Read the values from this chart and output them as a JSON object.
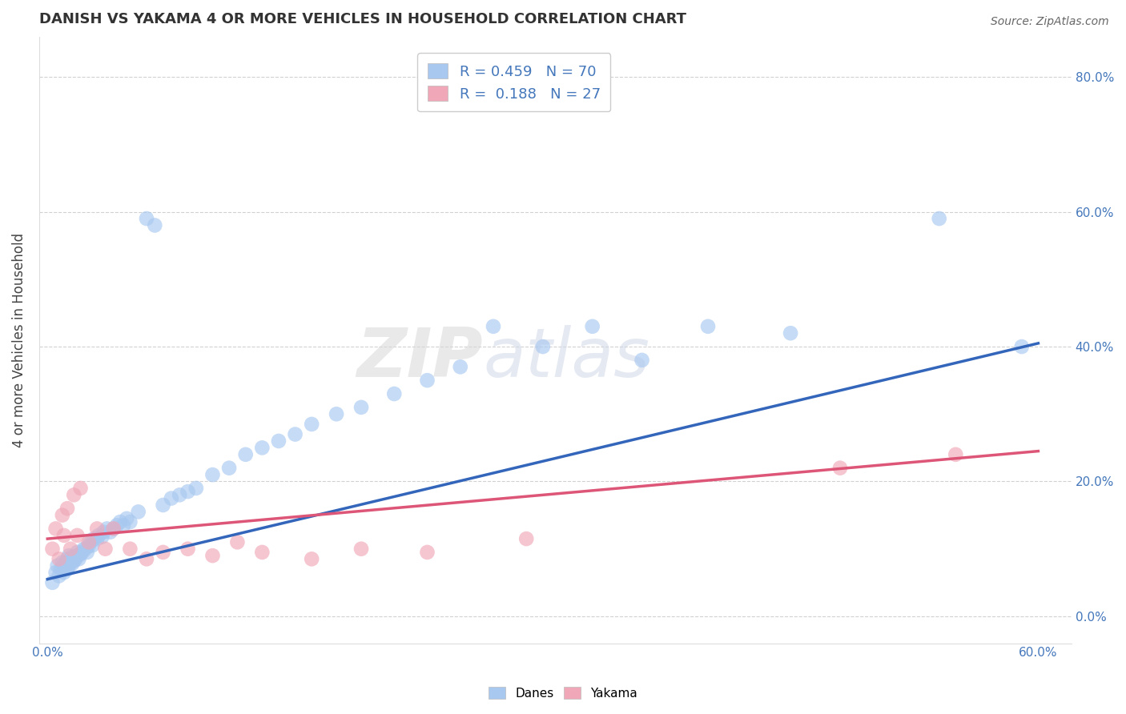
{
  "title": "DANISH VS YAKAMA 4 OR MORE VEHICLES IN HOUSEHOLD CORRELATION CHART",
  "source": "Source: ZipAtlas.com",
  "ylabel": "4 or more Vehicles in Household",
  "xlim": [
    -0.005,
    0.62
  ],
  "ylim": [
    -0.04,
    0.86
  ],
  "danes_R": 0.459,
  "danes_N": 70,
  "yakama_R": 0.188,
  "yakama_N": 27,
  "danes_color": "#a8c8f0",
  "yakama_color": "#f0a8b8",
  "danes_line_color": "#3366bb",
  "yakama_line_color": "#dd5577",
  "watermark": "ZIPatlas",
  "danes_x": [
    0.003,
    0.005,
    0.006,
    0.007,
    0.008,
    0.009,
    0.01,
    0.01,
    0.011,
    0.012,
    0.012,
    0.013,
    0.013,
    0.014,
    0.015,
    0.015,
    0.016,
    0.017,
    0.018,
    0.018,
    0.019,
    0.02,
    0.021,
    0.022,
    0.023,
    0.024,
    0.025,
    0.026,
    0.027,
    0.028,
    0.03,
    0.031,
    0.033,
    0.034,
    0.036,
    0.038,
    0.04,
    0.042,
    0.044,
    0.046,
    0.048,
    0.05,
    0.055,
    0.06,
    0.065,
    0.07,
    0.075,
    0.08,
    0.085,
    0.09,
    0.1,
    0.11,
    0.12,
    0.13,
    0.14,
    0.15,
    0.16,
    0.175,
    0.19,
    0.21,
    0.23,
    0.25,
    0.27,
    0.3,
    0.33,
    0.36,
    0.4,
    0.45,
    0.54,
    0.59
  ],
  "danes_y": [
    0.05,
    0.065,
    0.075,
    0.06,
    0.07,
    0.08,
    0.065,
    0.075,
    0.08,
    0.07,
    0.085,
    0.075,
    0.09,
    0.08,
    0.078,
    0.088,
    0.082,
    0.085,
    0.09,
    0.095,
    0.085,
    0.092,
    0.095,
    0.1,
    0.1,
    0.095,
    0.105,
    0.11,
    0.105,
    0.115,
    0.115,
    0.12,
    0.118,
    0.125,
    0.13,
    0.125,
    0.13,
    0.135,
    0.14,
    0.135,
    0.145,
    0.14,
    0.155,
    0.59,
    0.58,
    0.165,
    0.175,
    0.18,
    0.185,
    0.19,
    0.21,
    0.22,
    0.24,
    0.25,
    0.26,
    0.27,
    0.285,
    0.3,
    0.31,
    0.33,
    0.35,
    0.37,
    0.43,
    0.4,
    0.43,
    0.38,
    0.43,
    0.42,
    0.59,
    0.4
  ],
  "yakama_x": [
    0.003,
    0.005,
    0.007,
    0.009,
    0.01,
    0.012,
    0.014,
    0.016,
    0.018,
    0.02,
    0.025,
    0.03,
    0.035,
    0.04,
    0.05,
    0.06,
    0.07,
    0.085,
    0.1,
    0.115,
    0.13,
    0.16,
    0.19,
    0.23,
    0.29,
    0.48,
    0.55
  ],
  "yakama_y": [
    0.1,
    0.13,
    0.085,
    0.15,
    0.12,
    0.16,
    0.1,
    0.18,
    0.12,
    0.19,
    0.11,
    0.13,
    0.1,
    0.13,
    0.1,
    0.085,
    0.095,
    0.1,
    0.09,
    0.11,
    0.095,
    0.085,
    0.1,
    0.095,
    0.115,
    0.22,
    0.24
  ],
  "danes_line_x": [
    0.0,
    0.6
  ],
  "danes_line_y": [
    0.055,
    0.405
  ],
  "yakama_line_x": [
    0.0,
    0.6
  ],
  "yakama_line_y": [
    0.115,
    0.245
  ],
  "yticks": [
    0.0,
    0.2,
    0.4,
    0.6,
    0.8
  ],
  "ytick_labels": [
    "0.0%",
    "20.0%",
    "40.0%",
    "60.0%",
    "80.0%"
  ],
  "xticks": [
    0.0,
    0.1,
    0.2,
    0.3,
    0.4,
    0.5,
    0.6
  ],
  "xtick_labels": [
    "0.0%",
    "",
    "",
    "",
    "",
    "",
    "60.0%"
  ]
}
